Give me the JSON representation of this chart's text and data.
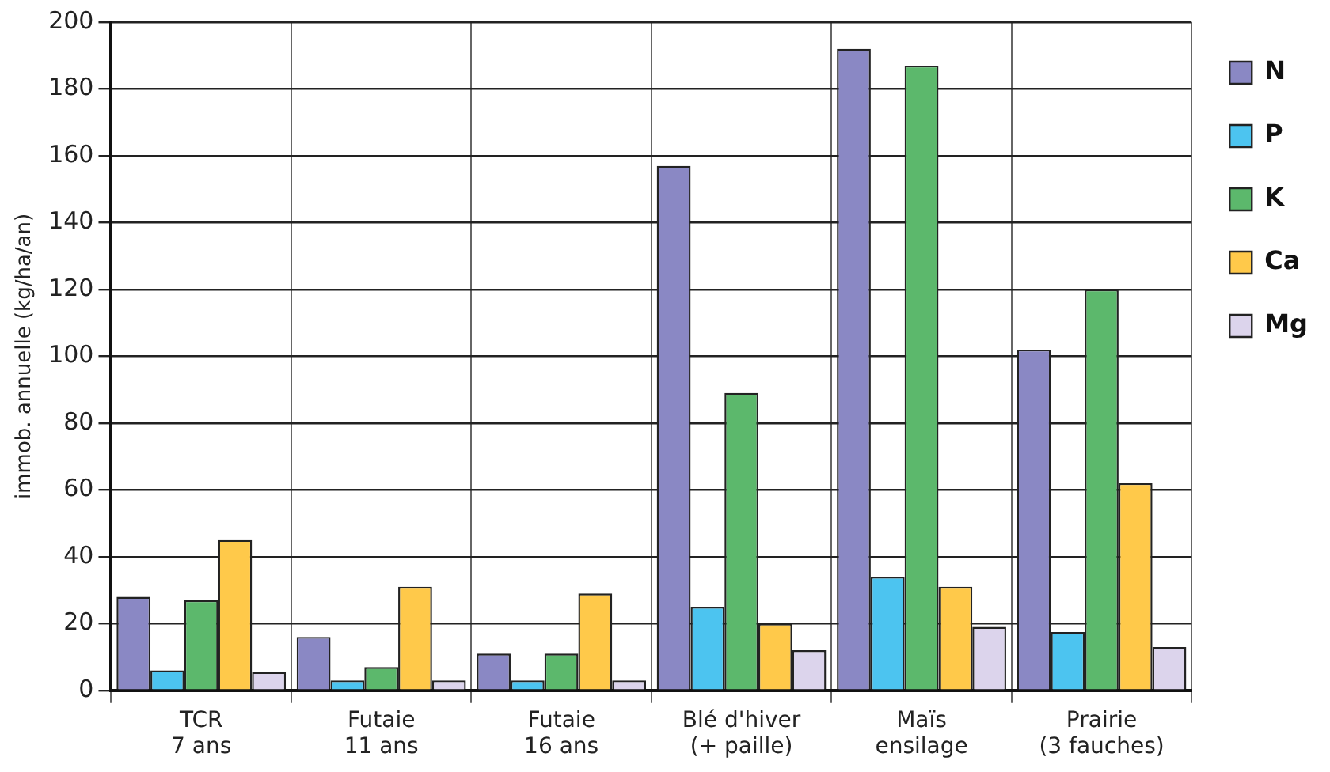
{
  "chart_data": {
    "type": "bar",
    "ylabel": "immob. annuelle (kg/ha/an)",
    "categories": [
      "TCR\n7 ans",
      "Futaie\n11 ans",
      "Futaie\n16 ans",
      "Blé d'hiver\n(+ paille)",
      "Maïs\nensilage",
      "Prairie\n(3 fauches)"
    ],
    "series": [
      {
        "name": "N",
        "color": "#8a88c4",
        "values": [
          28,
          16,
          11,
          157,
          192,
          102
        ]
      },
      {
        "name": "P",
        "color": "#4cc4f0",
        "values": [
          6,
          3,
          3,
          25,
          34,
          17.5
        ]
      },
      {
        "name": "K",
        "color": "#5cb86c",
        "values": [
          27,
          7,
          11,
          89,
          187,
          120
        ]
      },
      {
        "name": "Ca",
        "color": "#ffc94a",
        "values": [
          45,
          31,
          29,
          20,
          31,
          62
        ]
      },
      {
        "name": "Mg",
        "color": "#dcd4ec",
        "values": [
          5.5,
          3,
          3,
          12,
          19,
          13
        ]
      }
    ],
    "ylim": [
      0,
      200
    ],
    "yticks": [
      0,
      20,
      40,
      60,
      80,
      100,
      120,
      140,
      160,
      180,
      200
    ],
    "grid": true,
    "legend": "right"
  }
}
